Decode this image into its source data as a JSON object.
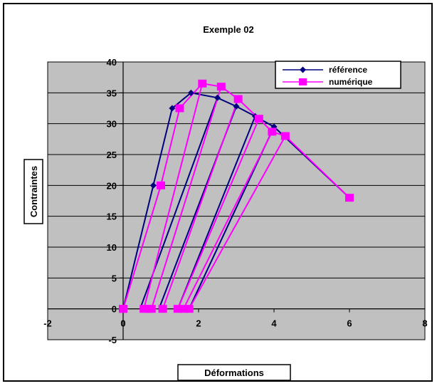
{
  "chart_data": {
    "type": "scatter",
    "title": "Exemple 02",
    "xlabel": "Déformations",
    "ylabel": "Contraintes",
    "xlim": [
      -2,
      8
    ],
    "ylim": [
      -5,
      40
    ],
    "xticks": [
      -2,
      0,
      2,
      4,
      6,
      8
    ],
    "yticks": [
      -5,
      0,
      5,
      10,
      15,
      20,
      25,
      30,
      35,
      40
    ],
    "grid": "horizontal",
    "legend_position": "top-right",
    "plot_background": "#c0c0c0",
    "series": [
      {
        "name": "référence",
        "color": "#000080",
        "marker": "diamond",
        "points": [
          [
            0,
            0
          ],
          [
            0.8,
            20
          ],
          [
            1.3,
            32.5
          ],
          [
            1.8,
            35
          ],
          [
            2.5,
            34.2
          ],
          [
            3.0,
            32.8
          ],
          [
            3.5,
            31.2
          ],
          [
            4.0,
            29.5
          ],
          [
            6.0,
            18
          ]
        ],
        "unloading_lines": [
          [
            [
              2.5,
              34.2
            ],
            [
              0.45,
              0
            ]
          ],
          [
            [
              3.0,
              32.8
            ],
            [
              0.95,
              0
            ]
          ],
          [
            [
              3.5,
              31.2
            ],
            [
              1.45,
              0
            ]
          ],
          [
            [
              4.0,
              29.5
            ],
            [
              1.75,
              0
            ]
          ]
        ]
      },
      {
        "name": "numérique",
        "color": "#ff00ff",
        "marker": "square",
        "points": [
          [
            0,
            0
          ],
          [
            1.0,
            20
          ],
          [
            1.5,
            32.5
          ],
          [
            2.1,
            36.5
          ],
          [
            2.6,
            36
          ],
          [
            3.05,
            34
          ],
          [
            3.6,
            30.8
          ],
          [
            3.95,
            28.7
          ],
          [
            4.3,
            28
          ],
          [
            6.0,
            18
          ]
        ],
        "unloading_lines": [
          [
            [
              2.1,
              36.5
            ],
            [
              0.55,
              0
            ]
          ],
          [
            [
              2.6,
              36
            ],
            [
              0.75,
              0
            ]
          ],
          [
            [
              3.05,
              34
            ],
            [
              1.05,
              0
            ]
          ],
          [
            [
              3.6,
              30.8
            ],
            [
              1.45,
              0
            ]
          ],
          [
            [
              3.95,
              28.7
            ],
            [
              1.6,
              0
            ]
          ],
          [
            [
              4.3,
              28
            ],
            [
              1.75,
              0
            ]
          ]
        ],
        "zero_markers": [
          0,
          0.55,
          0.65,
          0.75,
          1.05,
          1.45,
          1.6,
          1.75
        ]
      }
    ]
  }
}
